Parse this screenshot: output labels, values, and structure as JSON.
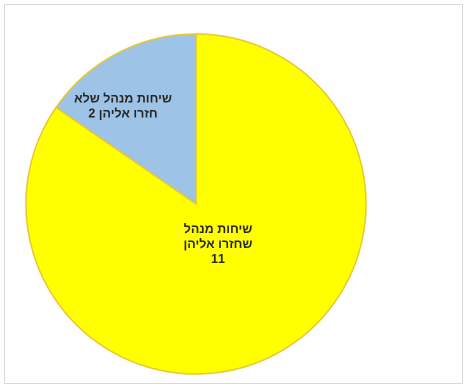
{
  "chart_data": {
    "type": "pie",
    "title": "",
    "legend": "none",
    "start_angle_deg": 0,
    "direction": "clockwise",
    "slices": [
      {
        "label_lines": [
          "שיחות מנהל",
          "שחזרו אליהן",
          "11"
        ],
        "value": 11,
        "color": "#ffff00",
        "border": "#e6c830"
      },
      {
        "label_lines": [
          "שיחות מנהל שלא",
          "חזרו אליהן 2"
        ],
        "value": 2,
        "color": "#9dc3e6",
        "border": "#e6c830"
      }
    ]
  }
}
